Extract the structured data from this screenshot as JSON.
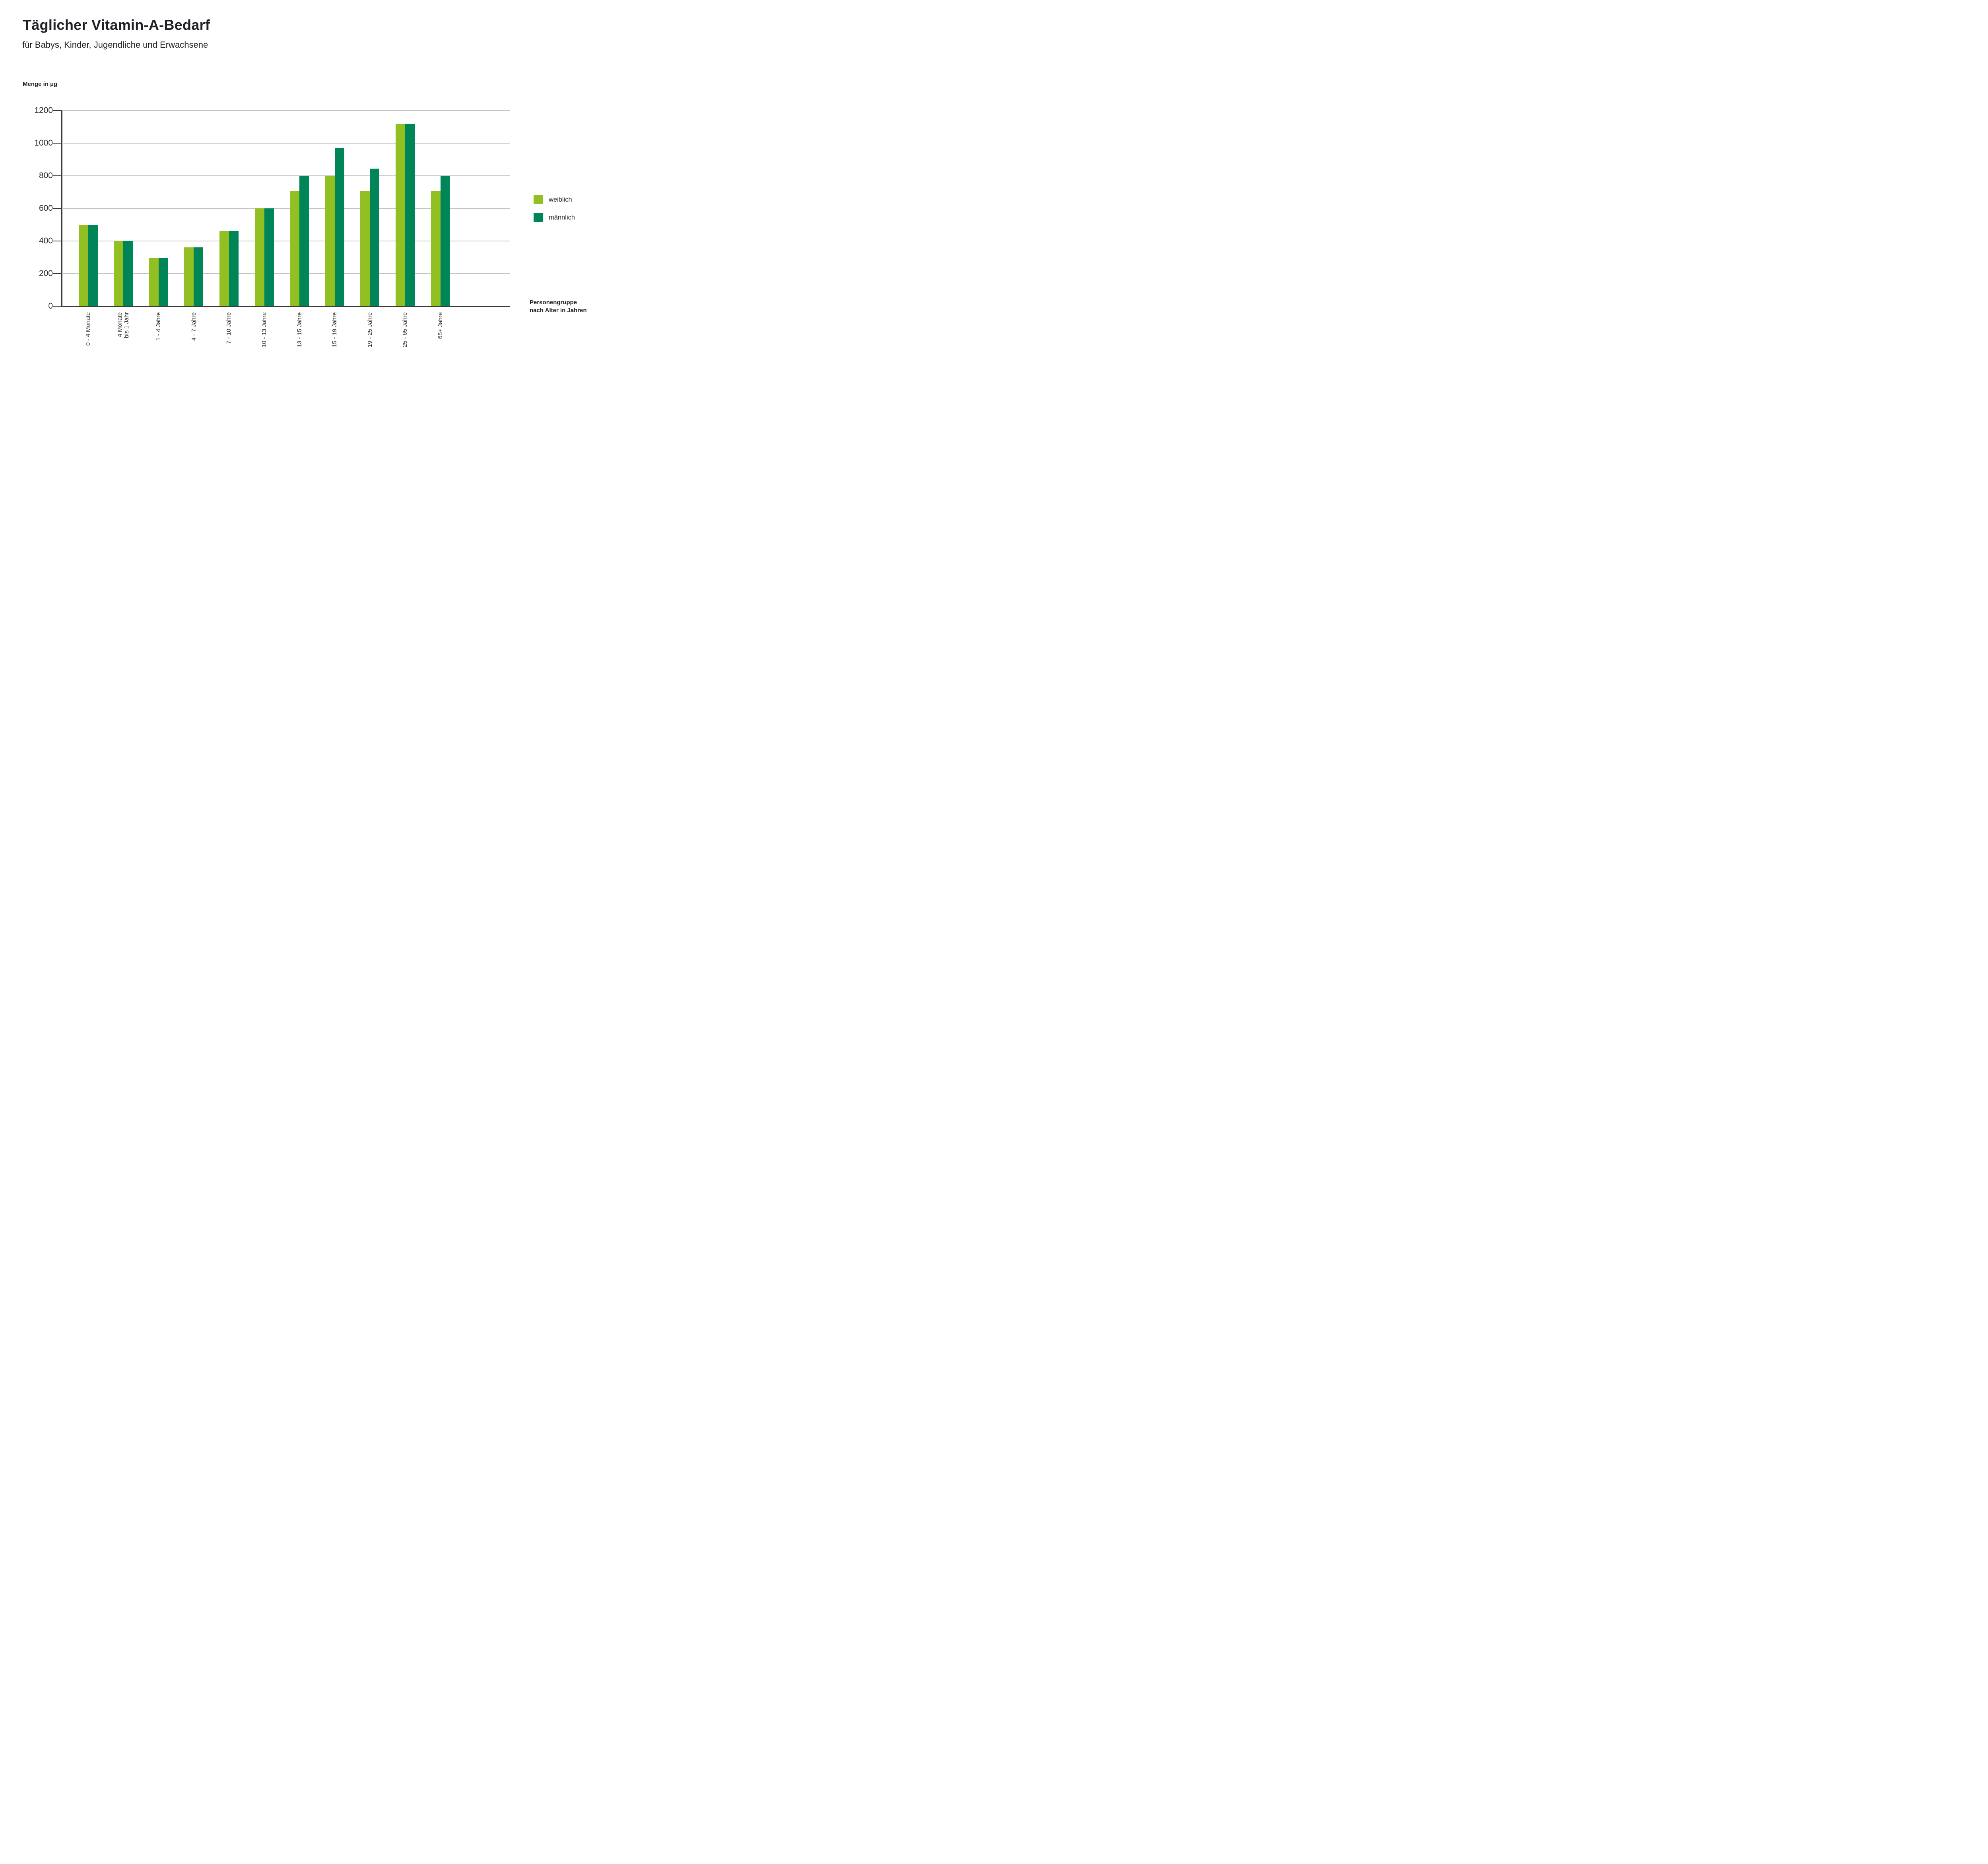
{
  "header": {
    "title": "Täglicher Vitamin-A-Bedarf",
    "subtitle": "für Babys, Kinder, Jugendliche und Erwachsene"
  },
  "y_axis": {
    "label": "Menge in µg",
    "ticks": [
      1200,
      1000,
      800,
      600,
      400,
      200,
      0
    ]
  },
  "x_axis": {
    "label_line1": "Personengruppe",
    "label_line2": "nach Alter in Jahren"
  },
  "legend": [
    {
      "label": "weiblich",
      "color": "#92BF21"
    },
    {
      "label": "männlich",
      "color": "#008558"
    }
  ],
  "chart_data": {
    "type": "bar",
    "title": "Täglicher Vitamin-A-Bedarf",
    "subtitle": "für Babys, Kinder, Jugendliche und Erwachsene",
    "ylabel": "Menge in µg",
    "xlabel": "Personengruppe nach Alter in Jahren",
    "ylim": [
      0,
      1200
    ],
    "ytick_step": 200,
    "grid": true,
    "legend_position": "right",
    "categories": [
      "0 - 4 Monate",
      "4 Monate bis 1 Jahr",
      "1 - 4 Jahre",
      "4 - 7 Jahre",
      "7 - 10 Jahre",
      "10 - 13 Jahre",
      "13 - 15 Jahre",
      "15 - 19 Jahre",
      "19 - 25 Jahre",
      "25 - 65 Jahre",
      "65+ Jahre"
    ],
    "categories_display": [
      [
        "0 - 4 Monate"
      ],
      [
        "4 Monate",
        "bis 1 Jahr"
      ],
      [
        "1 - 4 Jahre"
      ],
      [
        "4 - 7 Jahre"
      ],
      [
        "7 - 10 Jahre"
      ],
      [
        "10 - 13 Jahre"
      ],
      [
        "13 - 15 Jahre"
      ],
      [
        "15 - 19 Jahre"
      ],
      [
        "19 - 25 Jahre"
      ],
      [
        "25 - 65 Jahre"
      ],
      [
        "65+ Jahre"
      ]
    ],
    "series": [
      {
        "name": "weiblich",
        "color": "#92BF21",
        "values": [
          500,
          400,
          295,
          360,
          460,
          600,
          705,
          800,
          705,
          1120,
          705
        ]
      },
      {
        "name": "männlich",
        "color": "#008558",
        "values": [
          500,
          400,
          295,
          360,
          460,
          600,
          800,
          970,
          845,
          1120,
          800
        ]
      }
    ]
  }
}
